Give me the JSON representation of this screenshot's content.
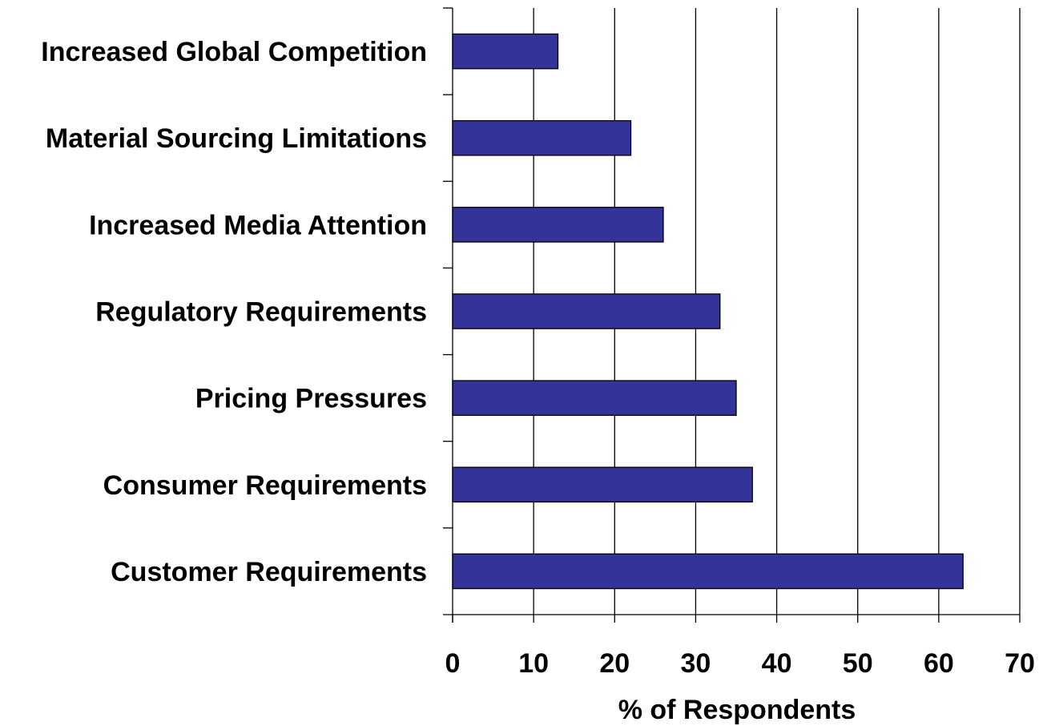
{
  "chart_data": {
    "type": "bar",
    "orientation": "horizontal",
    "categories": [
      "Increased Global Competition",
      "Material Sourcing Limitations",
      "Increased Media Attention",
      "Regulatory Requirements",
      "Pricing Pressures",
      "Consumer Requirements",
      "Customer Requirements"
    ],
    "values": [
      13,
      22,
      26,
      33,
      35,
      37,
      63
    ],
    "xlabel": "% of Respondents",
    "ylabel": "",
    "title": "",
    "xlim": [
      0,
      70
    ],
    "xticks": [
      "0",
      "10",
      "20",
      "30",
      "40",
      "50",
      "60",
      "70"
    ],
    "grid": "vertical",
    "legend": "none",
    "colors": {
      "bar_fill": "#333399",
      "bar_stroke": "#000000",
      "grid": "#000000",
      "background": "#ffffff"
    }
  }
}
